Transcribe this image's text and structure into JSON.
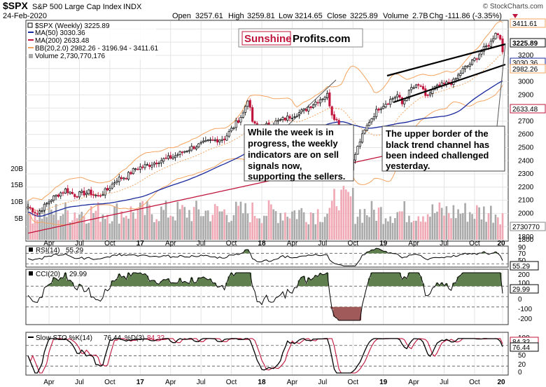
{
  "header": {
    "symbol": "$SPX",
    "name": "S&P 500 Large Cap Index",
    "exchange": "INDX",
    "date": "24-Feb-2020",
    "open_label": "Open",
    "open": "3257.61",
    "high_label": "High",
    "high": "3259.81",
    "low_label": "Low",
    "low": "3214.65",
    "close_label": "Close",
    "close": "3225.89",
    "volume_label": "Volume",
    "volume": "2.7B",
    "chg_label": "Chg",
    "chg": "-111.86 (-3.35%)",
    "credit": "© StockCharts.com"
  },
  "legend": {
    "price": "$SPX (Weekly) 3225.89",
    "ma50": "MA(50) 3030.36",
    "ma200": "MA(200) 2633.48",
    "bb": "BB(20,2.0) 2982.26 - 3196.94 - 3411.61",
    "volume": "Volume 2,730,770,176"
  },
  "brand": {
    "part1": "Sunshine",
    "part2": "Profits.com"
  },
  "annotations": {
    "left": [
      "While the week is in",
      "progress, the weekly",
      "indicators are on sell",
      "signals now,",
      "supporting the sellers."
    ],
    "right": [
      "The upper border of the",
      "black trend channel has",
      "been indeed challenged",
      "yesterday."
    ]
  },
  "colors": {
    "up": "#000000",
    "down": "#c0143c",
    "ma50": "#1a2a9c",
    "ma200": "#c0143c",
    "bb": "#f4a460",
    "vol_up": "#a9a9a9",
    "vol_down": "#f0a8b4",
    "osc_pos": "#5f7f4f",
    "osc_neg": "#a05a5a"
  },
  "chart_data": [
    {
      "type": "candlestick",
      "panel": "price",
      "series": [
        {
          "name": "$SPX (Weekly)",
          "last": 3225.89
        }
      ],
      "approx_path": [
        [
          0,
          2050
        ],
        [
          4,
          2000
        ],
        [
          10,
          2110
        ],
        [
          16,
          2180
        ],
        [
          20,
          2140
        ],
        [
          26,
          2160
        ],
        [
          30,
          2130
        ],
        [
          34,
          2180
        ],
        [
          38,
          2260
        ],
        [
          42,
          2280
        ],
        [
          46,
          2340
        ],
        [
          52,
          2370
        ],
        [
          56,
          2400
        ],
        [
          62,
          2430
        ],
        [
          70,
          2500
        ],
        [
          78,
          2550
        ],
        [
          84,
          2570
        ],
        [
          88,
          2660
        ],
        [
          92,
          2760
        ],
        [
          94,
          2870
        ],
        [
          96,
          2700
        ],
        [
          98,
          2640
        ],
        [
          104,
          2680
        ],
        [
          110,
          2720
        ],
        [
          118,
          2780
        ],
        [
          124,
          2860
        ],
        [
          128,
          2900
        ],
        [
          130,
          2760
        ],
        [
          134,
          2650
        ],
        [
          136,
          2400
        ],
        [
          138,
          2350
        ],
        [
          142,
          2550
        ],
        [
          146,
          2700
        ],
        [
          150,
          2800
        ],
        [
          154,
          2850
        ],
        [
          158,
          2900
        ],
        [
          160,
          2830
        ],
        [
          164,
          2950
        ],
        [
          168,
          2970
        ],
        [
          170,
          2880
        ],
        [
          174,
          2950
        ],
        [
          178,
          2980
        ],
        [
          182,
          3000
        ],
        [
          186,
          3090
        ],
        [
          190,
          3150
        ],
        [
          194,
          3230
        ],
        [
          198,
          3300
        ],
        [
          200,
          3380
        ],
        [
          202,
          3330
        ],
        [
          203,
          3226
        ]
      ],
      "y_ticks": [
        1800,
        1900,
        2000,
        2100,
        2200,
        2300,
        2400,
        2500,
        2600,
        2700,
        2800,
        2900,
        3000,
        3100,
        3200,
        3300,
        3400
      ],
      "right_labels": [
        "3411.61",
        "3225.89",
        "3030.36",
        "2982.26",
        "2633.48"
      ],
      "ylim": [
        1800,
        3450
      ]
    },
    {
      "type": "bar",
      "panel": "volume",
      "y_ticks_left": [
        "5B",
        "10B",
        "15B",
        "20B"
      ],
      "right_label": "2730770",
      "last": 2730770176
    },
    {
      "type": "line",
      "panel": "rsi",
      "series": [
        {
          "name": "RSI(14)",
          "last": 55.29
        }
      ],
      "y_ticks": [
        30,
        50,
        70,
        90
      ],
      "right_label": "55.29",
      "ylim": [
        20,
        95
      ]
    },
    {
      "type": "line",
      "panel": "cci",
      "series": [
        {
          "name": "CCI(20)",
          "last": 29.99
        }
      ],
      "y_ticks": [
        -200,
        -100,
        0,
        100,
        200
      ],
      "right_label": "29.99",
      "ylim": [
        -250,
        250
      ]
    },
    {
      "type": "line",
      "panel": "stoch",
      "series": [
        {
          "name": "Slow STO %K(14)",
          "last": 76.44
        },
        {
          "name": "%D(3)",
          "last": 84.32
        }
      ],
      "y_ticks": [
        0,
        20,
        50,
        80,
        100
      ],
      "right_labels": [
        "84.32",
        "76.44"
      ],
      "ylim": [
        0,
        110
      ]
    }
  ],
  "x_axis": {
    "labels": [
      "Apr",
      "Jul",
      "Oct",
      "17",
      "Apr",
      "Jul",
      "Oct",
      "18",
      "Apr",
      "Jul",
      "Oct",
      "19",
      "Apr",
      "Jul",
      "Oct",
      "20"
    ],
    "bold": [
      false,
      false,
      false,
      true,
      false,
      false,
      false,
      true,
      false,
      false,
      false,
      true,
      false,
      false,
      false,
      true
    ]
  }
}
